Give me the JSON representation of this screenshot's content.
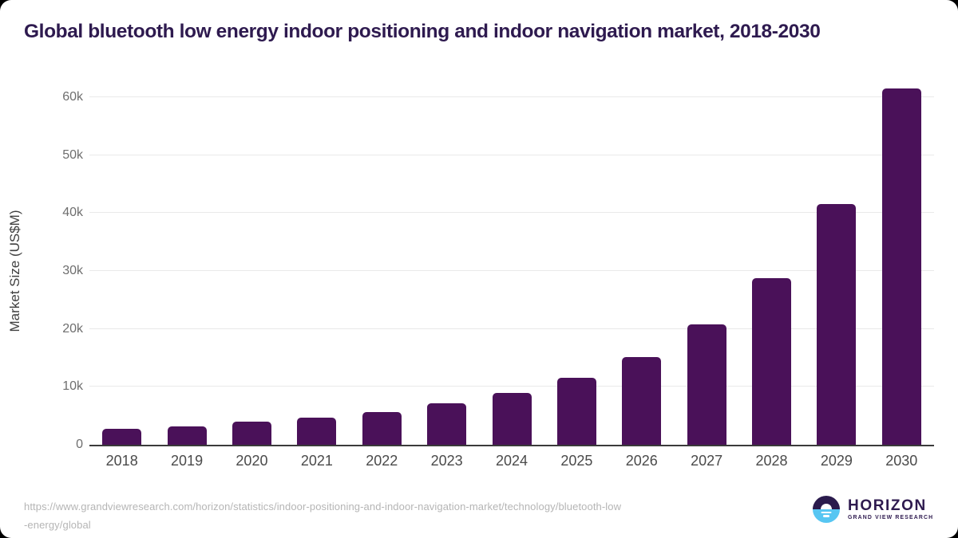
{
  "page": {
    "title": "Global bluetooth low energy indoor positioning and indoor navigation market, 2018-2030"
  },
  "chart_data": {
    "type": "bar",
    "title": "Global bluetooth low energy indoor positioning and indoor navigation market, 2018-2030",
    "categories": [
      "2018",
      "2019",
      "2020",
      "2021",
      "2022",
      "2023",
      "2024",
      "2025",
      "2026",
      "2027",
      "2028",
      "2029",
      "2030"
    ],
    "values": [
      2700,
      3200,
      4000,
      4700,
      5700,
      7100,
      8900,
      11500,
      15200,
      20800,
      28800,
      41500,
      61500
    ],
    "series_name": "Market Size",
    "xlabel": "",
    "ylabel": "Market Size (US$M)",
    "ylim": [
      0,
      62300
    ],
    "ytick_values": [
      0,
      10000,
      20000,
      30000,
      40000,
      50000,
      60000
    ],
    "ytick_labels": [
      "0",
      "10k",
      "20k",
      "30k",
      "40k",
      "50k",
      "60k"
    ],
    "grid": true,
    "legend": "none",
    "bar_color": "#4a1159"
  },
  "footer": {
    "source_url_line1": "https://www.grandviewresearch.com/horizon/statistics/indoor-positioning-and-indoor-navigation-market/technology/bluetooth-low",
    "source_url_line2": "-energy/global",
    "brand": {
      "name": "HORIZON",
      "subtitle": "GRAND VIEW RESEARCH"
    }
  },
  "colors": {
    "title_text": "#2e1a4f",
    "bar": "#4a1159",
    "gridline": "#e9e9e9",
    "axis_line": "#3a3a3a",
    "ytick_text": "#6e6e6e",
    "xtick_text": "#4a4a4a",
    "axis_title_text": "#3f3f3f",
    "url_text": "#b5b5b5",
    "logo_top": "#2b1b4d",
    "logo_bottom": "#57c6f2"
  }
}
